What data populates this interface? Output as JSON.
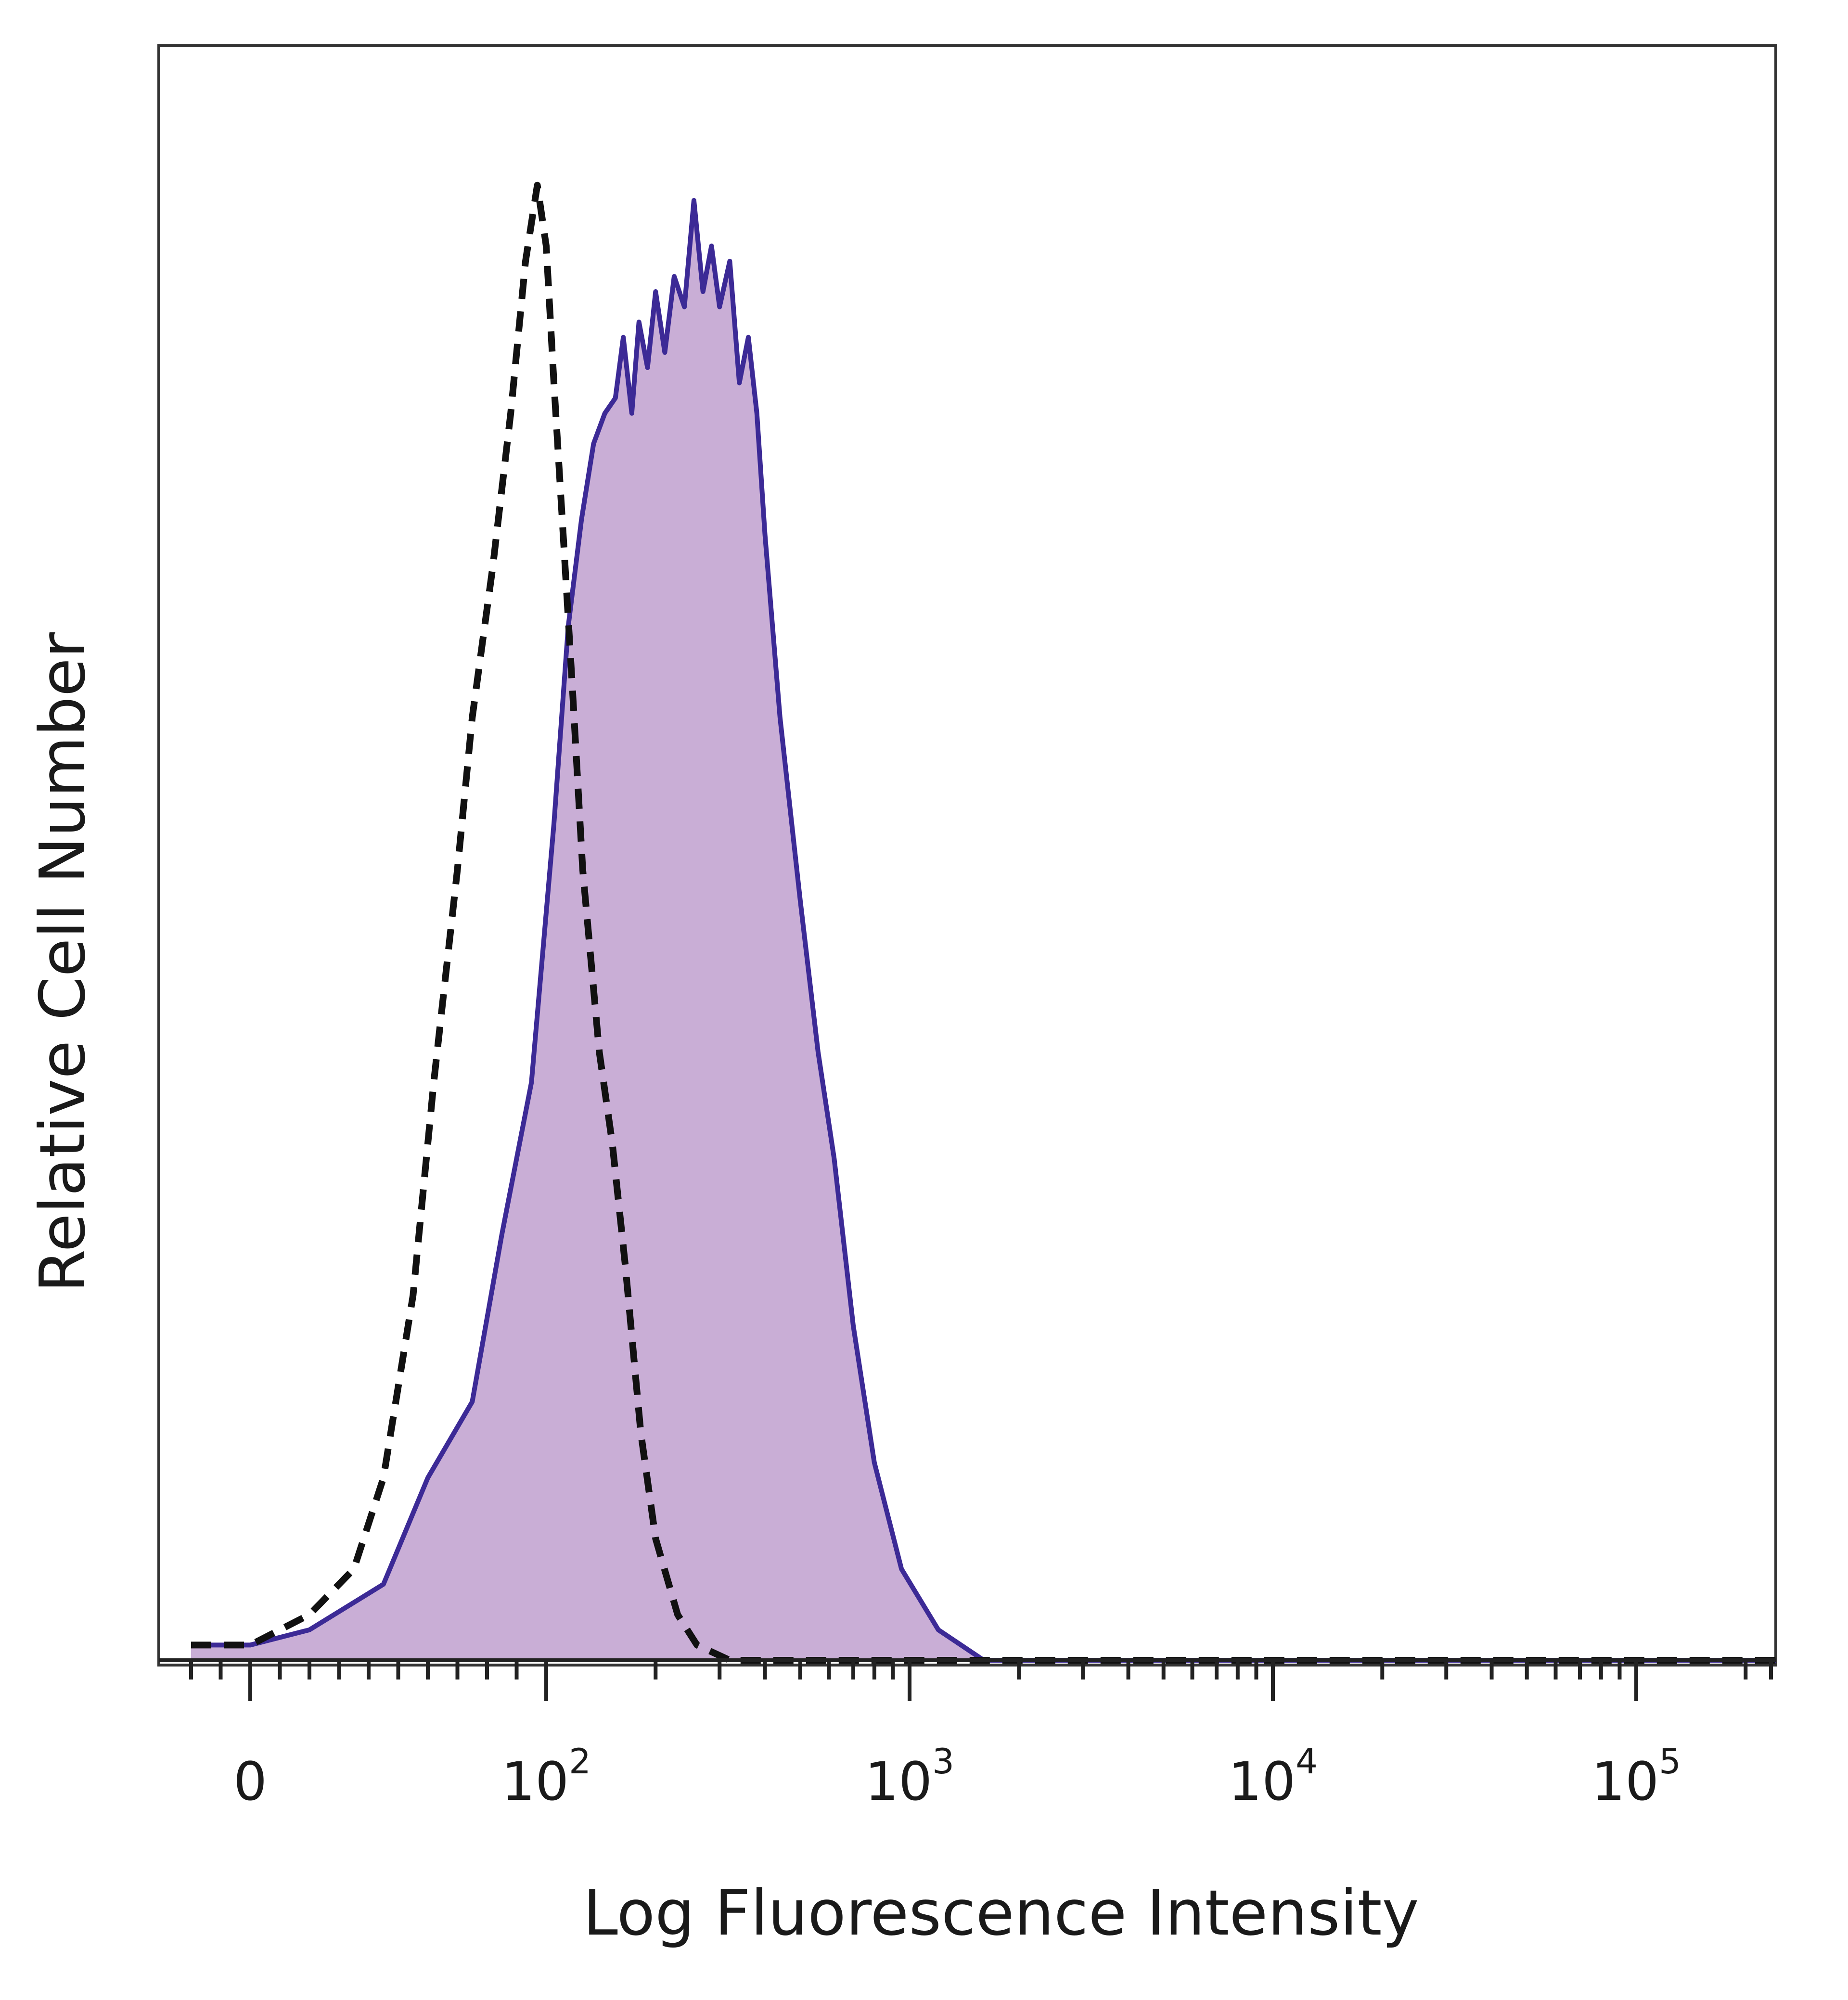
{
  "chart_data": {
    "type": "area",
    "title": "",
    "xlabel": "Log Fluorescence Intensity",
    "ylabel": "Relative Cell Number",
    "x_scale": "biexponential (log)",
    "x_ticks": [
      {
        "value": "0",
        "base": "0",
        "exp": ""
      },
      {
        "value": 100,
        "base": "10",
        "exp": "2"
      },
      {
        "value": 1000,
        "base": "10",
        "exp": "3"
      },
      {
        "value": 10000,
        "base": "10",
        "exp": "4"
      },
      {
        "value": 100000,
        "base": "10",
        "exp": "5"
      }
    ],
    "xlim": [
      -30,
      250000
    ],
    "ylim": [
      0,
      100
    ],
    "grid": false,
    "legend": "none",
    "series": [
      {
        "style": "dashed",
        "stroke": "#111111",
        "fill": "none",
        "points": [
          [
            -20,
            1
          ],
          [
            0,
            1
          ],
          [
            20,
            3
          ],
          [
            35,
            6
          ],
          [
            45,
            12
          ],
          [
            55,
            24
          ],
          [
            62,
            38
          ],
          [
            70,
            52
          ],
          [
            75,
            62
          ],
          [
            82,
            72
          ],
          [
            88,
            82
          ],
          [
            93,
            92
          ],
          [
            97,
            97
          ],
          [
            100,
            93
          ],
          [
            105,
            84
          ],
          [
            112,
            73
          ],
          [
            118,
            64
          ],
          [
            126,
            52
          ],
          [
            140,
            40
          ],
          [
            152,
            34
          ],
          [
            165,
            26
          ],
          [
            182,
            15
          ],
          [
            200,
            8
          ],
          [
            230,
            3
          ],
          [
            260,
            1
          ],
          [
            320,
            0
          ],
          [
            1000,
            0
          ],
          [
            10000,
            0
          ],
          [
            100000,
            0
          ],
          [
            250000,
            0
          ]
        ]
      },
      {
        "style": "solid",
        "stroke": "#3c2a96",
        "fill": "#c9aed6",
        "points": [
          [
            -20,
            1
          ],
          [
            0,
            1
          ],
          [
            20,
            2
          ],
          [
            45,
            5
          ],
          [
            60,
            12
          ],
          [
            75,
            17
          ],
          [
            85,
            28
          ],
          [
            95,
            38
          ],
          [
            105,
            55
          ],
          [
            115,
            68
          ],
          [
            125,
            75
          ],
          [
            135,
            80
          ],
          [
            145,
            82
          ],
          [
            155,
            83
          ],
          [
            163,
            87
          ],
          [
            172,
            82
          ],
          [
            180,
            88
          ],
          [
            190,
            85
          ],
          [
            200,
            90
          ],
          [
            212,
            86
          ],
          [
            225,
            91
          ],
          [
            240,
            89
          ],
          [
            255,
            96
          ],
          [
            270,
            90
          ],
          [
            285,
            93
          ],
          [
            300,
            89
          ],
          [
            320,
            92
          ],
          [
            340,
            84
          ],
          [
            360,
            87
          ],
          [
            380,
            82
          ],
          [
            400,
            74
          ],
          [
            440,
            62
          ],
          [
            500,
            50
          ],
          [
            560,
            40
          ],
          [
            620,
            33
          ],
          [
            700,
            22
          ],
          [
            800,
            13
          ],
          [
            950,
            6
          ],
          [
            1200,
            2
          ],
          [
            1600,
            0
          ],
          [
            10000,
            0
          ],
          [
            100000,
            0
          ],
          [
            250000,
            0
          ]
        ]
      }
    ]
  }
}
